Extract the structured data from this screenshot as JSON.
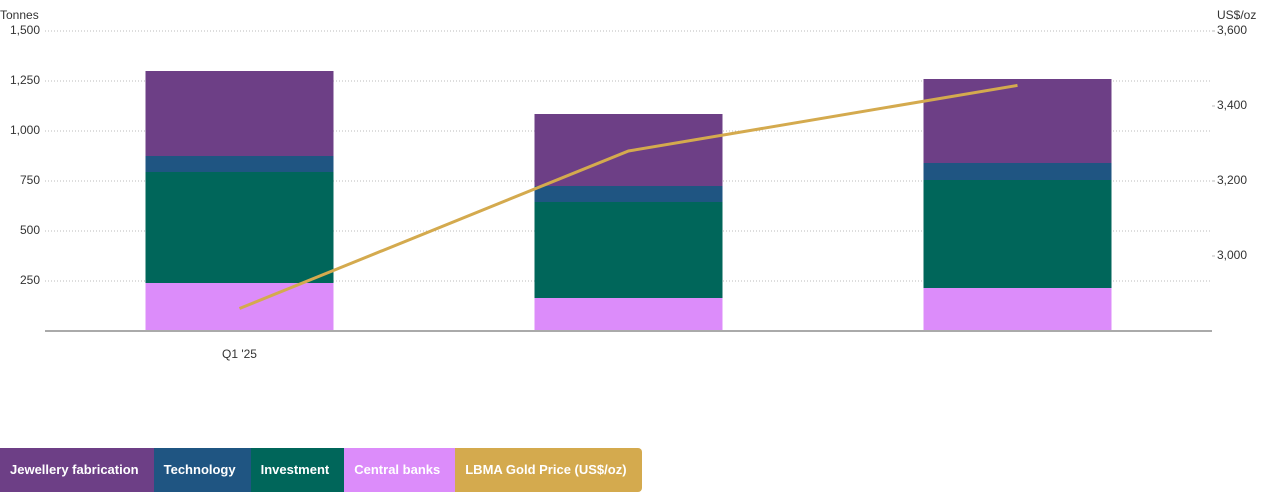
{
  "chart_data": {
    "type": "bar",
    "stacked": true,
    "y_label": "Tonnes",
    "y2_label": "US$/oz",
    "categories": [
      "Q1 '25",
      null,
      null
    ],
    "series": [
      {
        "name": "Jewellery fabrication",
        "color": "#6d3f86",
        "values": [
          425,
          360,
          420
        ]
      },
      {
        "name": "Technology",
        "color": "#1f5582",
        "values": [
          80,
          80,
          85
        ]
      },
      {
        "name": "Investment",
        "color": "#00665a",
        "values": [
          555,
          480,
          540
        ]
      },
      {
        "name": "Central banks",
        "color": "#dc8cfa",
        "values": [
          240,
          165,
          215
        ]
      },
      {
        "name": "LBMA Gold Price (US$/oz)",
        "color": "#d4aa4e",
        "type": "line",
        "axis": "y2",
        "values": [
          2860,
          3280,
          3455
        ]
      }
    ],
    "ylim": [
      0,
      1500
    ],
    "yticks": [
      250,
      500,
      750,
      {
        "value": 1000,
        "label": "1,000"
      },
      {
        "value": 1250,
        "label": "1,250"
      },
      {
        "value": 1500,
        "label": "1,500"
      }
    ],
    "y2lim": [
      2800,
      3600
    ],
    "y2ticks": [
      {
        "value": 3000,
        "label": "3,000"
      },
      {
        "value": 3200,
        "label": "3,200"
      },
      {
        "value": 3400,
        "label": "3,400"
      },
      {
        "value": 3600,
        "label": "3,600"
      }
    ],
    "grid": true
  }
}
